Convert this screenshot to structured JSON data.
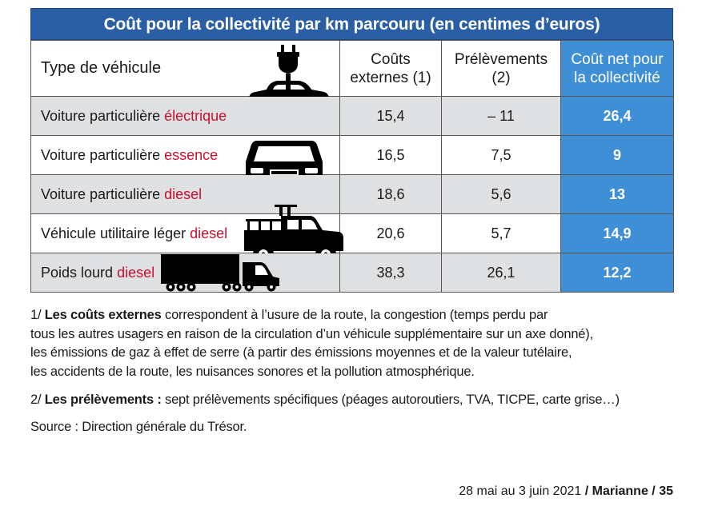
{
  "title": "Coût pour la collectivité par km parcouru (en centimes d’euros)",
  "headers": {
    "type": "Type de véhicule",
    "external_l1": "Coûts",
    "external_l2": "externes (1)",
    "levies_l1": "Prélèvements",
    "levies_l2": "(2)",
    "net_l1": "Coût net pour",
    "net_l2": "la collectivité"
  },
  "rows": [
    {
      "prefix": "Voiture particulière ",
      "fuel": "électrique",
      "external": "15,4",
      "levies": "– 11",
      "net": "26,4",
      "icon": "electric-car-icon"
    },
    {
      "prefix": "Voiture particulière ",
      "fuel": "essence",
      "external": "16,5",
      "levies": "7,5",
      "net": "9",
      "icon": "car-front-icon"
    },
    {
      "prefix": "Voiture particulière ",
      "fuel": "diesel",
      "external": "18,6",
      "levies": "5,6",
      "net": "13",
      "icon": "car-front-icon"
    },
    {
      "prefix": "Véhicule utilitaire léger ",
      "fuel": "diesel",
      "external": "20,6",
      "levies": "5,7",
      "net": "14,9",
      "icon": "pickup-truck-icon"
    },
    {
      "prefix": "Poids lourd ",
      "fuel": "diesel",
      "external": "38,3",
      "levies": "26,1",
      "net": "12,2",
      "icon": "semi-truck-icon"
    }
  ],
  "colors": {
    "header_blue": "#2a5fa5",
    "net_blue": "#3f8fd6",
    "fuel_red": "#c8102e",
    "shade": "#dfe0e2"
  },
  "notes": {
    "n1_prefix": "1/ ",
    "n1_bold": "Les coûts externes",
    "n1_l1": " correspondent à l’usure de la route, la congestion (temps perdu par",
    "n1_l2": "tous les autres usagers en raison de la circulation d’un véhicule supplémentaire sur un axe donné),",
    "n1_l3": "les émissions de gaz à effet de serre (à partir des émissions moyennes et de la valeur tutélaire,",
    "n1_l4": "les accidents de la route, les nuisances sonores et la pollution atmosphérique.",
    "n2_prefix": "2/ ",
    "n2_bold": "Les prélèvements :",
    "n2_text": " sept prélèvements spécifiques (péages autoroutiers, TVA, TICPE, carte grise…)",
    "source": "Source : Direction générale du Trésor."
  },
  "footer": {
    "date": "28 mai au 3 juin 2021",
    "sep1": " / ",
    "magazine": "Marianne",
    "sep2": " / ",
    "page": "35"
  }
}
